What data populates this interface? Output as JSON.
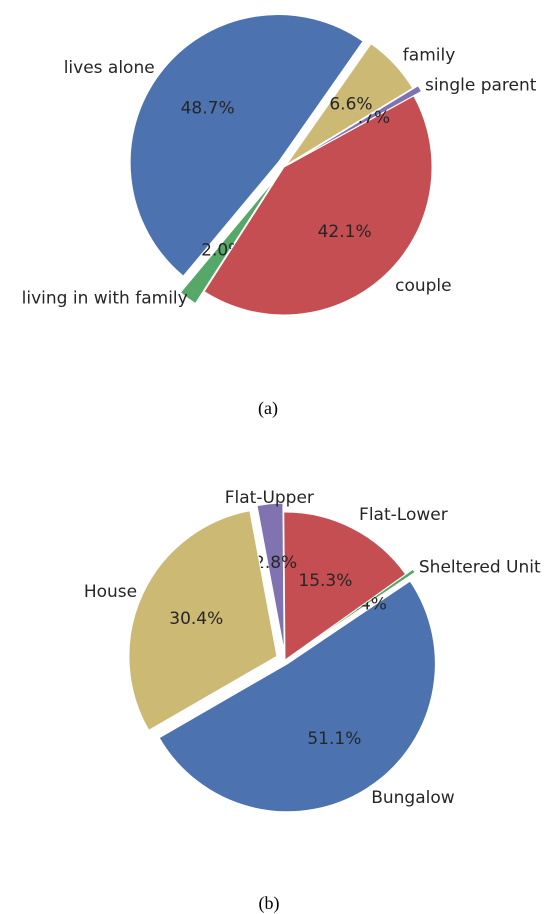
{
  "chart_data": [
    {
      "type": "pie",
      "caption": "(a)",
      "categories": [
        "lives alone",
        "living in with family",
        "couple",
        "single parent",
        "family"
      ],
      "values": [
        48.7,
        2.0,
        42.1,
        0.7,
        6.6
      ],
      "value_labels": [
        "48.7%",
        "2.0%",
        "42.1%",
        "0.7%",
        "6.6%"
      ],
      "colors": [
        "#4c72b0",
        "#55a868",
        "#c44e52",
        "#8172b2",
        "#ccb974"
      ]
    },
    {
      "type": "pie",
      "caption": "(b)",
      "categories": [
        "Bungalow",
        "Sheltered Unit",
        "Flat-Lower",
        "Flat-Upper",
        "House"
      ],
      "values": [
        51.1,
        0.4,
        15.3,
        2.8,
        30.4
      ],
      "value_labels": [
        "51.1%",
        "0.4%",
        "15.3%",
        "2.8%",
        "30.4%"
      ],
      "colors": [
        "#4c72b0",
        "#55a868",
        "#c44e52",
        "#8172b2",
        "#ccb974"
      ]
    }
  ]
}
